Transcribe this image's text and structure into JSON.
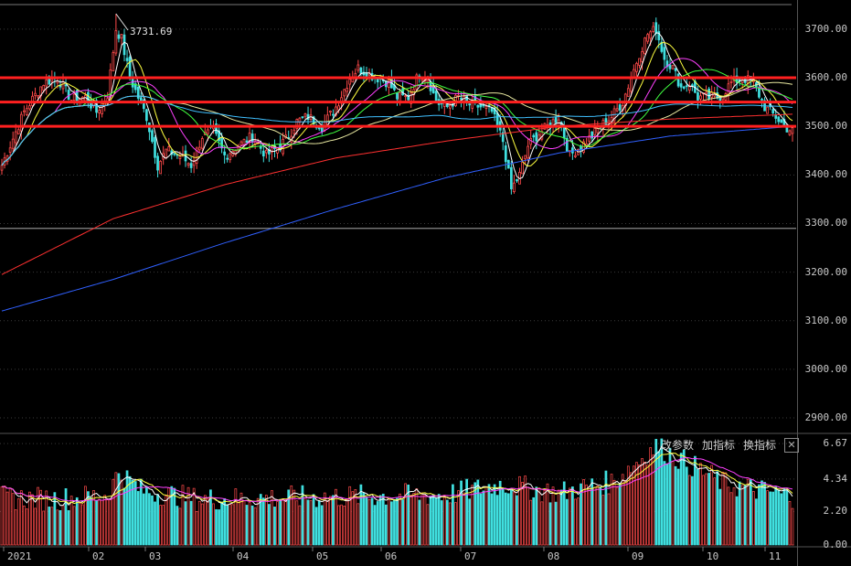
{
  "chart_data": [
    {
      "type": "candlestick",
      "title": "",
      "price_axis": {
        "ticks": [
          "3700.00",
          "3600.00",
          "3500.00",
          "3400.00",
          "3300.00",
          "3200.00",
          "3100.00",
          "3000.00",
          "2900.00"
        ],
        "ylim": [
          2870,
          3760
        ]
      },
      "x_axis": {
        "labels": [
          "2021",
          "02",
          "03",
          "04",
          "05",
          "06",
          "07",
          "08",
          "09",
          "10",
          "11"
        ]
      },
      "peak_annotation": "3731.69",
      "horizontal_lines": [
        3600,
        3550,
        3500
      ],
      "horizontal_line_color": "#ff2020",
      "reference_line": 3290,
      "close_series_anchors": [
        [
          0,
          3420
        ],
        [
          8,
          3530
        ],
        [
          15,
          3590
        ],
        [
          20,
          3600
        ],
        [
          25,
          3555
        ],
        [
          30,
          3560
        ],
        [
          34,
          3530
        ],
        [
          38,
          3565
        ],
        [
          41,
          3700
        ],
        [
          43,
          3680
        ],
        [
          46,
          3600
        ],
        [
          49,
          3560
        ],
        [
          52,
          3520
        ],
        [
          56,
          3420
        ],
        [
          59,
          3450
        ],
        [
          64,
          3440
        ],
        [
          68,
          3420
        ],
        [
          72,
          3480
        ],
        [
          76,
          3490
        ],
        [
          80,
          3440
        ],
        [
          85,
          3460
        ],
        [
          90,
          3480
        ],
        [
          95,
          3440
        ],
        [
          100,
          3460
        ],
        [
          103,
          3480
        ],
        [
          106,
          3510
        ],
        [
          110,
          3520
        ],
        [
          115,
          3500
        ],
        [
          120,
          3540
        ],
        [
          125,
          3600
        ],
        [
          128,
          3620
        ],
        [
          131,
          3610
        ],
        [
          135,
          3600
        ],
        [
          139,
          3590
        ],
        [
          142,
          3560
        ],
        [
          146,
          3560
        ],
        [
          150,
          3610
        ],
        [
          153,
          3600
        ],
        [
          156,
          3550
        ],
        [
          160,
          3540
        ],
        [
          164,
          3560
        ],
        [
          168,
          3545
        ],
        [
          172,
          3540
        ],
        [
          176,
          3530
        ],
        [
          180,
          3470
        ],
        [
          183,
          3370
        ],
        [
          186,
          3400
        ],
        [
          189,
          3460
        ],
        [
          192,
          3480
        ],
        [
          196,
          3500
        ],
        [
          200,
          3520
        ],
        [
          204,
          3440
        ],
        [
          208,
          3460
        ],
        [
          212,
          3480
        ],
        [
          215,
          3500
        ],
        [
          219,
          3520
        ],
        [
          223,
          3550
        ],
        [
          226,
          3600
        ],
        [
          229,
          3650
        ],
        [
          232,
          3690
        ],
        [
          235,
          3700
        ],
        [
          238,
          3640
        ],
        [
          241,
          3620
        ],
        [
          244,
          3580
        ],
        [
          247,
          3590
        ],
        [
          250,
          3560
        ],
        [
          254,
          3560
        ],
        [
          258,
          3560
        ],
        [
          262,
          3590
        ],
        [
          266,
          3600
        ],
        [
          270,
          3590
        ],
        [
          274,
          3540
        ],
        [
          278,
          3520
        ],
        [
          281,
          3500
        ],
        [
          284,
          3490
        ]
      ],
      "moving_averages": [
        {
          "color": "#ffffff",
          "period": 5
        },
        {
          "color": "#ffff40",
          "period": 10
        },
        {
          "color": "#ff40ff",
          "period": 20
        },
        {
          "color": "#40ff40",
          "period": 30
        },
        {
          "color": "#e8e8a0",
          "period": 60
        },
        {
          "color": "#40c0ff",
          "period": 120
        },
        {
          "color": "#ff3030",
          "period": 250
        },
        {
          "color": "#3060ff",
          "period": 500
        }
      ],
      "long_ma_anchors": {
        "ma250": [
          [
            0,
            3195
          ],
          [
            40,
            3310
          ],
          [
            80,
            3380
          ],
          [
            120,
            3435
          ],
          [
            160,
            3470
          ],
          [
            200,
            3500
          ],
          [
            240,
            3515
          ],
          [
            284,
            3525
          ]
        ],
        "ma500": [
          [
            0,
            3120
          ],
          [
            40,
            3185
          ],
          [
            80,
            3260
          ],
          [
            120,
            3330
          ],
          [
            160,
            3395
          ],
          [
            200,
            3445
          ],
          [
            240,
            3480
          ],
          [
            284,
            3500
          ]
        ]
      }
    },
    {
      "type": "bar",
      "title": "",
      "volume_axis": {
        "ticks": [
          "6.67",
          "4.34",
          "2.20",
          "0.00"
        ],
        "ylim": [
          0,
          7.1
        ]
      },
      "volume_anchors": [
        [
          0,
          3.1
        ],
        [
          20,
          3.0
        ],
        [
          38,
          3.3
        ],
        [
          42,
          4.8
        ],
        [
          50,
          3.6
        ],
        [
          70,
          3.0
        ],
        [
          100,
          3.1
        ],
        [
          130,
          3.2
        ],
        [
          160,
          3.3
        ],
        [
          180,
          4.0
        ],
        [
          200,
          3.4
        ],
        [
          220,
          4.2
        ],
        [
          235,
          6.5
        ],
        [
          245,
          5.5
        ],
        [
          260,
          4.0
        ],
        [
          284,
          3.2
        ]
      ],
      "up_color": "#ff4a4a",
      "down_color": "#40e0e0"
    }
  ],
  "indicator_menu": {
    "modify_params": "改参数",
    "add_indicator": "加指标",
    "switch_indicator": "换指标",
    "close_icon": "close-icon"
  },
  "colors": {
    "background": "#000000",
    "grid": "#3a3a3a",
    "up": "#ff4a4a",
    "down": "#40e0e0"
  }
}
